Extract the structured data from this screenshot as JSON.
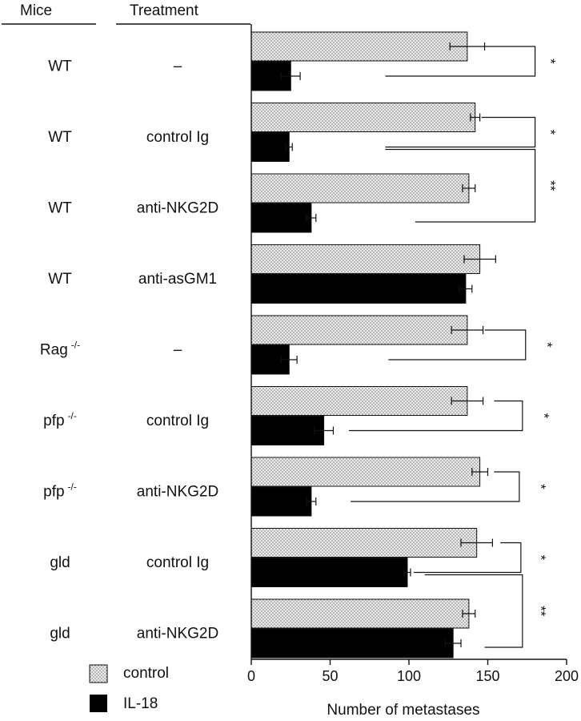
{
  "chart_data": {
    "type": "bar",
    "orientation": "horizontal",
    "title": "",
    "xlabel": "Number of metastases",
    "ylabel": "",
    "xlim": [
      0,
      200
    ],
    "xticks": [
      0,
      50,
      100,
      150,
      200
    ],
    "column_headers": {
      "mice": "Mice",
      "treatment": "Treatment"
    },
    "rows": [
      {
        "mice": "WT",
        "mice_sup": "",
        "treatment": "–"
      },
      {
        "mice": "WT",
        "mice_sup": "",
        "treatment": "control Ig"
      },
      {
        "mice": "WT",
        "mice_sup": "",
        "treatment": "anti-NKG2D"
      },
      {
        "mice": "WT",
        "mice_sup": "",
        "treatment": "anti-asGM1"
      },
      {
        "mice": "Rag",
        "mice_sup": "-/-",
        "treatment": "–"
      },
      {
        "mice": "pfp",
        "mice_sup": "-/-",
        "treatment": "control Ig"
      },
      {
        "mice": "pfp",
        "mice_sup": "-/-",
        "treatment": "anti-NKG2D"
      },
      {
        "mice": "gld",
        "mice_sup": "",
        "treatment": "control Ig"
      },
      {
        "mice": "gld",
        "mice_sup": "",
        "treatment": "anti-NKG2D"
      }
    ],
    "series": [
      {
        "name": "control",
        "fill": "dotted",
        "values": [
          137,
          142,
          138,
          145,
          137,
          137,
          145,
          143,
          138
        ],
        "errors": [
          11,
          3,
          4,
          10,
          10,
          10,
          5,
          10,
          4
        ]
      },
      {
        "name": "IL-18",
        "fill": "solid",
        "values": [
          25,
          24,
          38,
          136,
          24,
          46,
          38,
          99,
          128
        ],
        "errors": [
          6,
          2,
          3,
          4,
          5,
          6,
          3,
          2,
          5
        ]
      }
    ],
    "significance": [
      {
        "label": "*",
        "from_row": 0,
        "to_row": 0
      },
      {
        "label": "*",
        "from_row": 1,
        "to_row": 1
      },
      {
        "label": "**",
        "from_row": 1,
        "to_row": 2
      },
      {
        "label": "*",
        "from_row": 4,
        "to_row": 4
      },
      {
        "label": "*",
        "from_row": 5,
        "to_row": 5
      },
      {
        "label": "*",
        "from_row": 6,
        "to_row": 6
      },
      {
        "label": "*",
        "from_row": 7,
        "to_row": 7
      },
      {
        "label": "**",
        "from_row": 7,
        "to_row": 8
      }
    ],
    "legend": {
      "position": "bottom-left",
      "entries": [
        "control",
        "IL-18"
      ]
    },
    "colors": {
      "bar_solid": "#000000",
      "dot_fill": "#ececec",
      "dot_color": "#6d6d6d",
      "ink": "#111111"
    }
  }
}
